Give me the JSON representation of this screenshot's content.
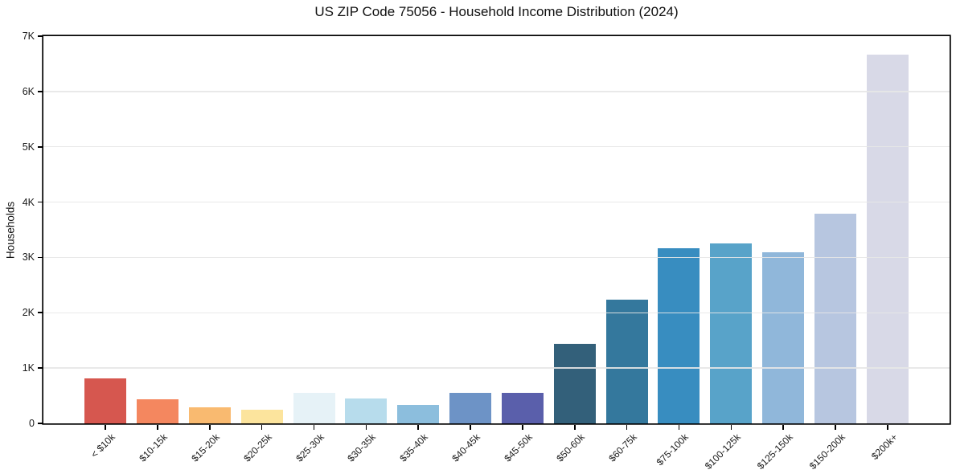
{
  "chart_data": {
    "type": "bar",
    "title": "US ZIP Code 75056 - Household Income Distribution (2024)",
    "xlabel": "",
    "ylabel": "Households",
    "categories": [
      "< $10k",
      "$10-15k",
      "$15-20k",
      "$20-25k",
      "$25-30k",
      "$30-35k",
      "$35-40k",
      "$40-45k",
      "$45-50k",
      "$50-60k",
      "$60-75k",
      "$75-100k",
      "$100-125k",
      "$125-150k",
      "$150-200k",
      "$200k+"
    ],
    "values": [
      820,
      440,
      290,
      245,
      550,
      455,
      340,
      545,
      555,
      1440,
      2240,
      3170,
      3250,
      3090,
      3790,
      6670
    ],
    "bar_colors": [
      "#d6574f",
      "#f4875f",
      "#f9ba70",
      "#fce49d",
      "#e6f2f7",
      "#b7dcec",
      "#8cbedd",
      "#6d93c6",
      "#5a5fab",
      "#33607a",
      "#34789d",
      "#388dc0",
      "#58a3c9",
      "#90b7da",
      "#b7c6e0",
      "#d8d9e7"
    ],
    "ylim": [
      0,
      7000
    ],
    "yticks": [
      {
        "value": 0,
        "label": "0"
      },
      {
        "value": 1000,
        "label": "1K"
      },
      {
        "value": 2000,
        "label": "2K"
      },
      {
        "value": 3000,
        "label": "3K"
      },
      {
        "value": 4000,
        "label": "4K"
      },
      {
        "value": 5000,
        "label": "5K"
      },
      {
        "value": 6000,
        "label": "6K"
      },
      {
        "value": 7000,
        "label": "7K"
      }
    ],
    "grid": "horizontal",
    "gridline_color": "#e7e7e7",
    "legend": "none",
    "xtick_rotation_deg": 45
  }
}
